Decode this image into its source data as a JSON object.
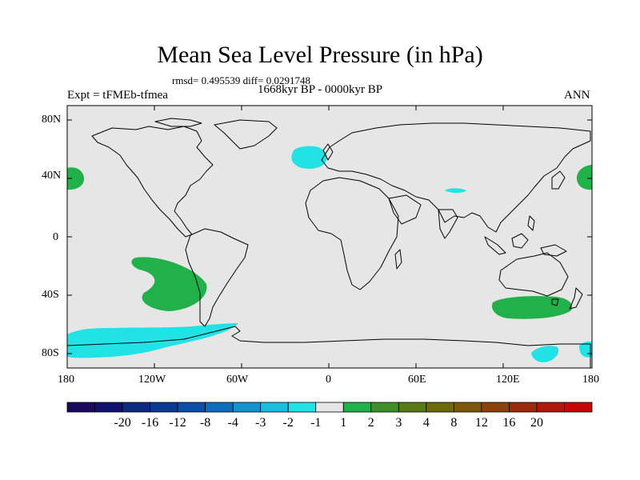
{
  "title": "Mean Sea Level Pressure (in hPa)",
  "stats": "rmsd= 0.495539 diff= 0.0291748",
  "period": "1668kyr BP - 0000kyr BP",
  "experiment": "Expt = tFMEb-tfmea",
  "season": "ANN",
  "lat_labels": [
    "80N",
    "40N",
    "0",
    "40S",
    "80S"
  ],
  "lon_labels": [
    "180",
    "120W",
    "60W",
    "0",
    "60E",
    "120E",
    "180"
  ],
  "colorbar": {
    "labels": [
      "-20",
      "-16",
      "-12",
      "-8",
      "-4",
      "-3",
      "-2",
      "-1",
      "1",
      "2",
      "3",
      "4",
      "8",
      "12",
      "16",
      "20"
    ],
    "colors": [
      "#1a0a5e",
      "#10106e",
      "#0b2a80",
      "#0a3a92",
      "#0b4fa8",
      "#0d6cbc",
      "#1592cf",
      "#19bde0",
      "#21e3e6",
      "#e6e6e6",
      "#22b04a",
      "#3f8f2a",
      "#5a7a14",
      "#6e6a0c",
      "#7c560a",
      "#8a420a",
      "#9a2a0a",
      "#ac180c",
      "#c40808"
    ]
  },
  "colors": {
    "ocean_background": "#e6e6e6",
    "positive_anomaly": "#22b04a",
    "negative_anomaly": "#21e3e6",
    "coastline": "#000000"
  }
}
